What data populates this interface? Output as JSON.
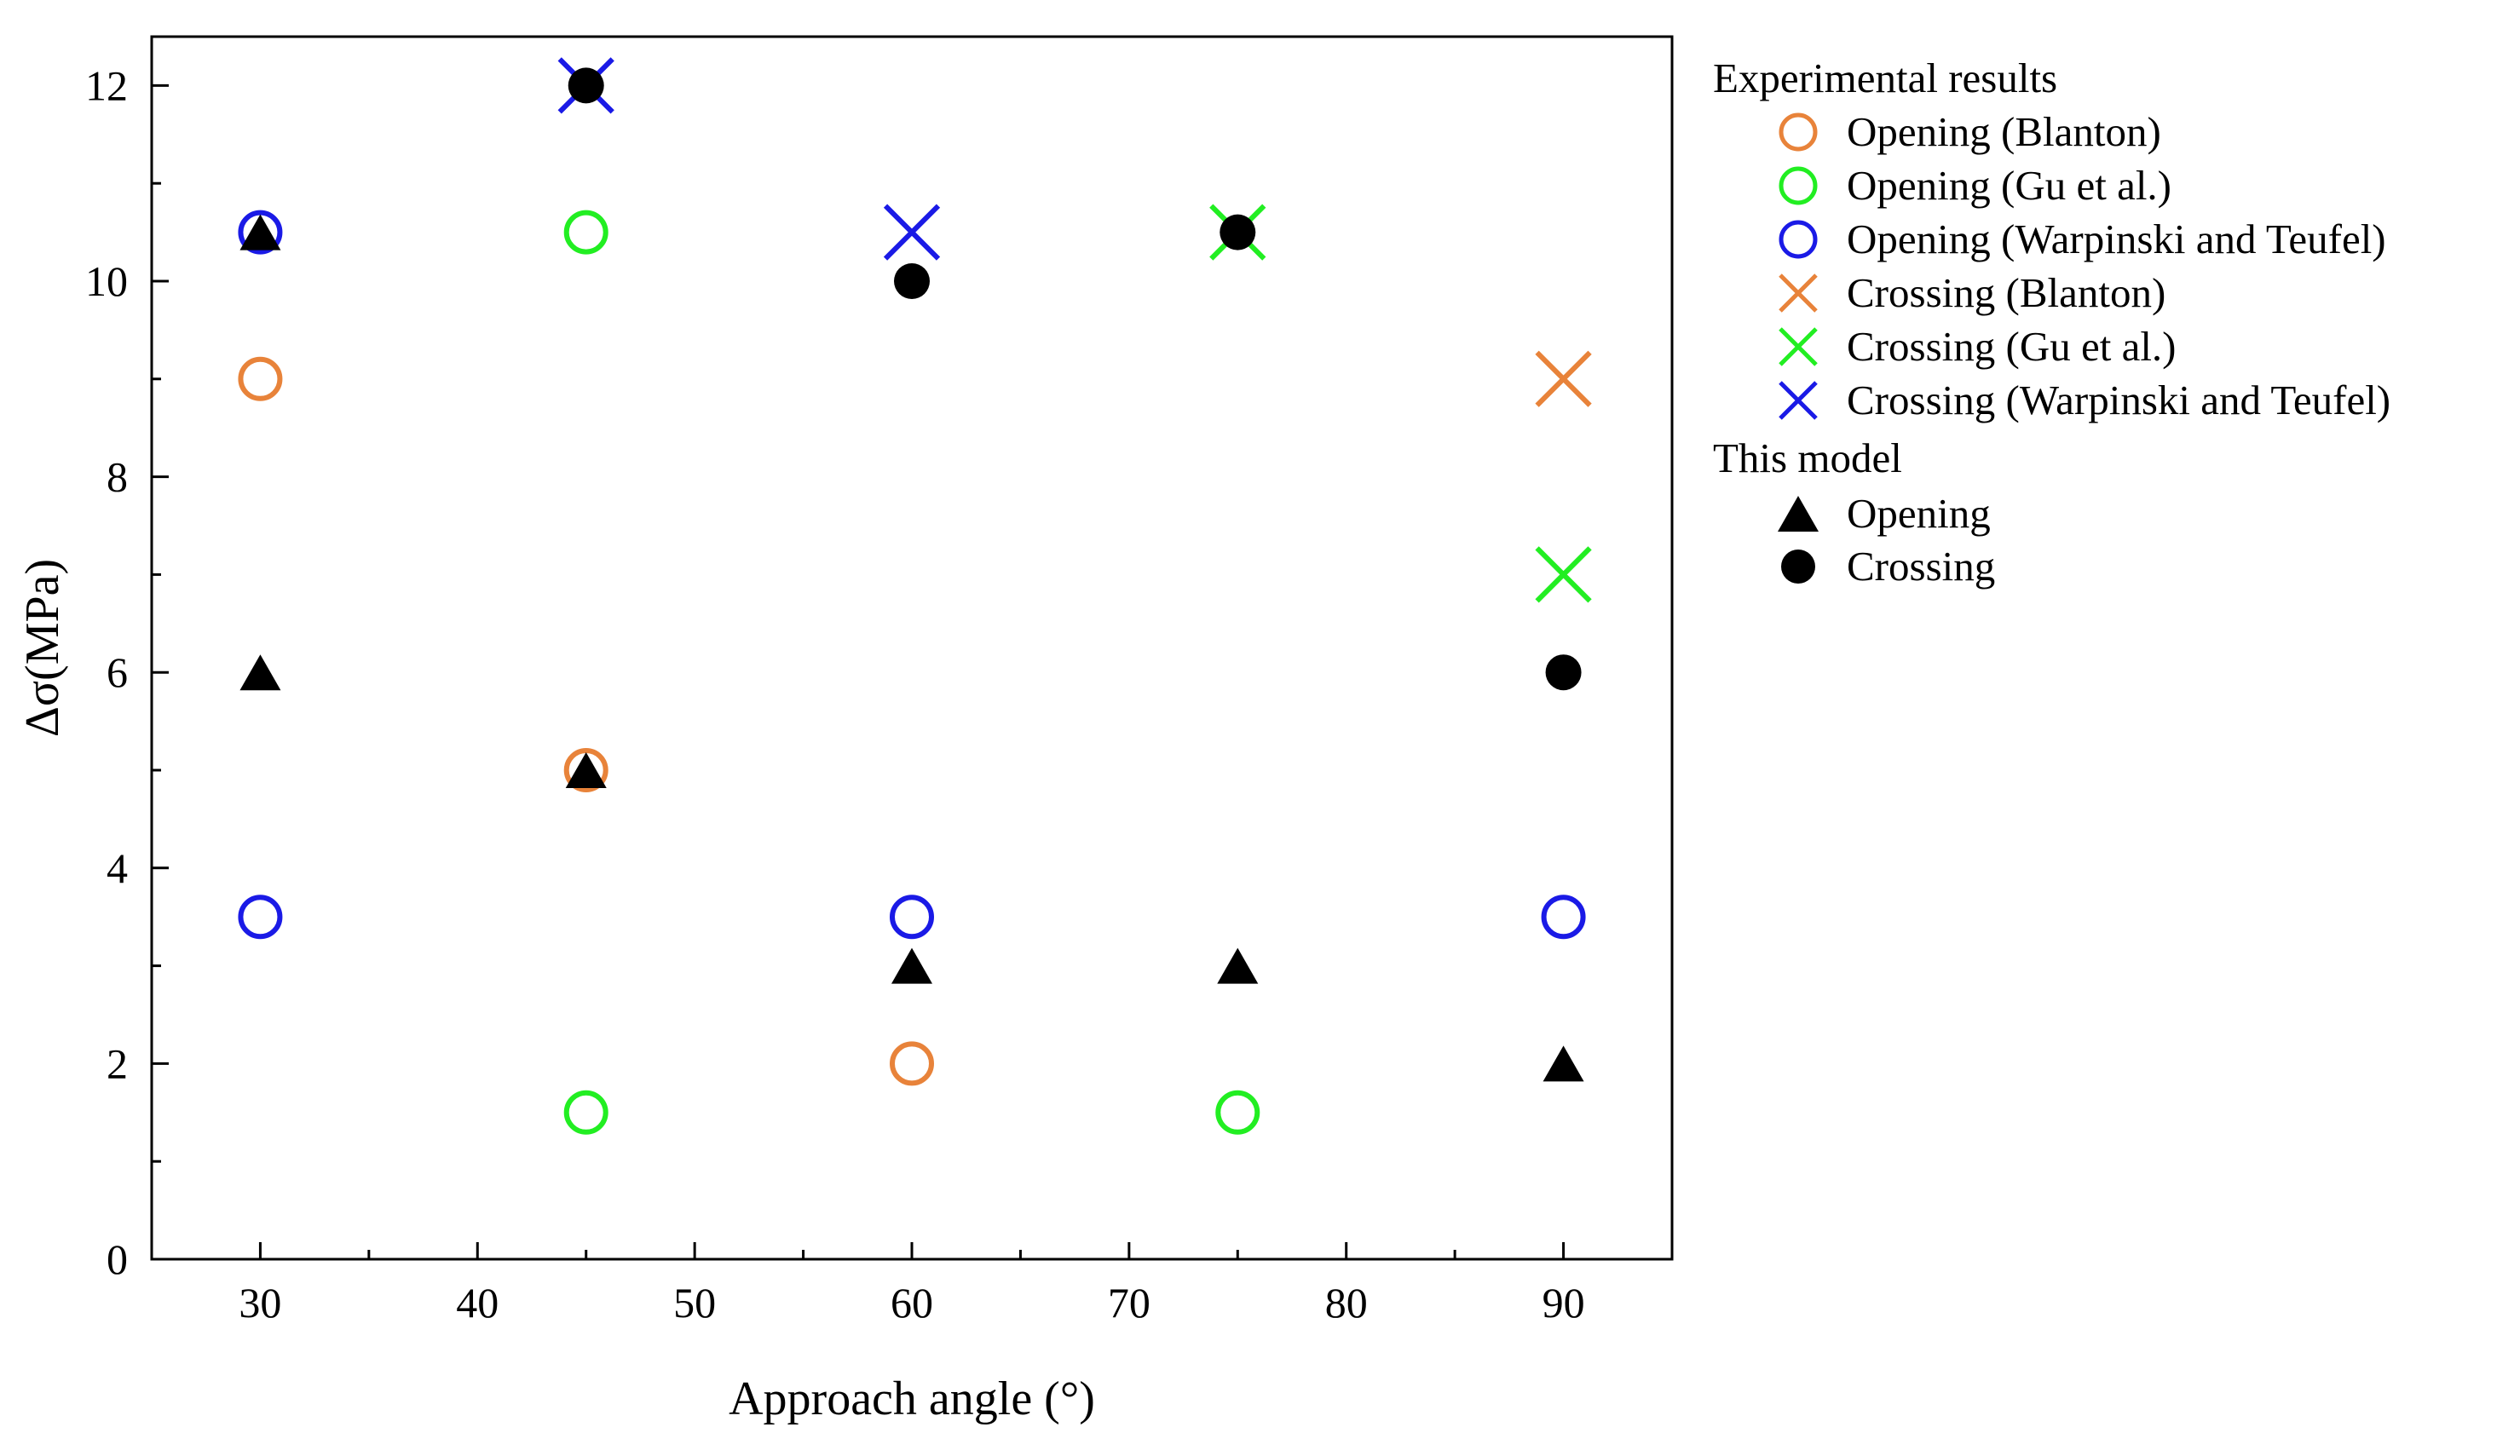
{
  "chart_data": {
    "type": "scatter",
    "xlabel": "Approach angle (°)",
    "ylabel": "Δσ(MPa)",
    "xlim": [
      25,
      95
    ],
    "ylim": [
      0,
      12.5
    ],
    "xticks": [
      30,
      40,
      50,
      60,
      70,
      80,
      90
    ],
    "yticks": [
      0,
      2,
      4,
      6,
      8,
      10,
      12
    ],
    "grid": false,
    "legend_position": "outside-right",
    "legend_groups": [
      {
        "name": "Experimental results",
        "entries": [
          0,
          1,
          2,
          3,
          4,
          5
        ]
      },
      {
        "name": "This model",
        "entries": [
          6,
          7
        ]
      }
    ],
    "series": [
      {
        "name": "Opening (Blanton)",
        "marker": "open-circle",
        "color": "#E8833A",
        "points": [
          [
            30,
            9.0
          ],
          [
            45,
            5.0
          ],
          [
            60,
            2.0
          ]
        ]
      },
      {
        "name": "Opening (Gu et al.)",
        "marker": "open-circle",
        "color": "#22EE22",
        "points": [
          [
            45,
            10.5
          ],
          [
            45,
            1.5
          ],
          [
            75,
            1.5
          ]
        ]
      },
      {
        "name": "Opening (Warpinski and Teufel)",
        "marker": "open-circle",
        "color": "#1A1AE6",
        "points": [
          [
            30,
            10.5
          ],
          [
            30,
            3.5
          ],
          [
            60,
            3.5
          ],
          [
            90,
            3.5
          ]
        ]
      },
      {
        "name": "Crossing (Blanton)",
        "marker": "cross",
        "color": "#E8833A",
        "points": [
          [
            90,
            9.0
          ]
        ]
      },
      {
        "name": "Crossing (Gu et al.)",
        "marker": "cross",
        "color": "#22EE22",
        "points": [
          [
            75,
            10.5
          ],
          [
            90,
            7.0
          ]
        ]
      },
      {
        "name": "Crossing (Warpinski and Teufel)",
        "marker": "cross",
        "color": "#1A1AE6",
        "points": [
          [
            45,
            12.0
          ],
          [
            60,
            10.5
          ]
        ]
      },
      {
        "name": "Opening",
        "marker": "filled-triangle",
        "color": "#000000",
        "points": [
          [
            30,
            10.5
          ],
          [
            30,
            6.0
          ],
          [
            45,
            5.0
          ],
          [
            60,
            3.0
          ],
          [
            75,
            3.0
          ],
          [
            90,
            2.0
          ]
        ]
      },
      {
        "name": "Crossing",
        "marker": "filled-circle",
        "color": "#000000",
        "points": [
          [
            45,
            12.0
          ],
          [
            60,
            10.0
          ],
          [
            75,
            10.5
          ],
          [
            90,
            6.0
          ]
        ]
      }
    ]
  }
}
